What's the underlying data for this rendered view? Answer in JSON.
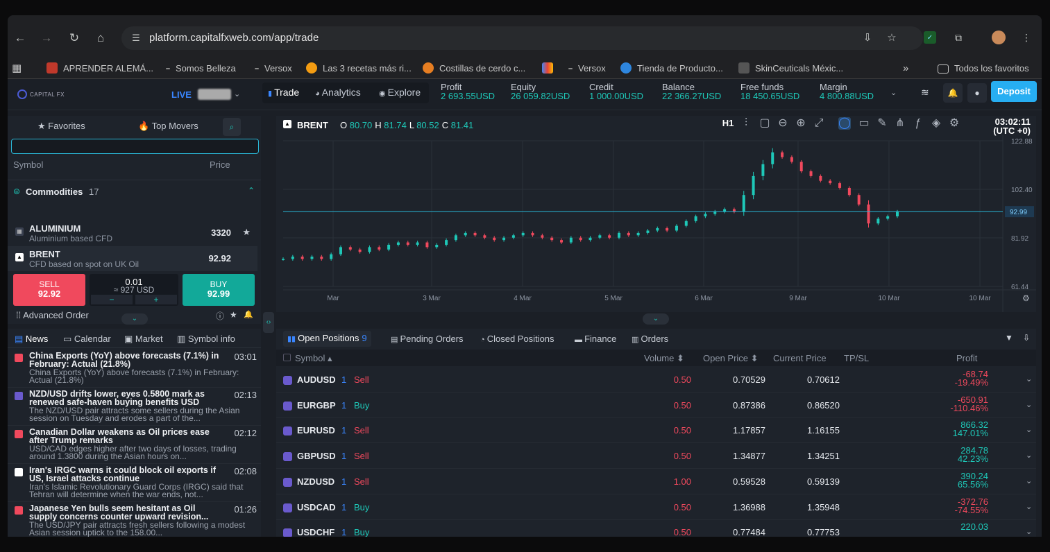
{
  "browser": {
    "url": "platform.capitalfxweb.com/app/trade",
    "bookmarks": [
      {
        "label": "APRENDER ALEMÁ...",
        "color": "#c0392b"
      },
      {
        "label": "Somos Belleza",
        "color": ""
      },
      {
        "label": "Versox",
        "color": ""
      },
      {
        "label": "Las 3 recetas más ri...",
        "color": "#f39c12"
      },
      {
        "label": "Costillas de cerdo c...",
        "color": "#e67e22"
      },
      {
        "label": "",
        "color": "#ea4335"
      },
      {
        "label": "Versox",
        "color": ""
      },
      {
        "label": "Tienda de Producto...",
        "color": "#2e86de"
      },
      {
        "label": "SkinCeuticals Méxic...",
        "color": "#555"
      }
    ],
    "all_bookmarks": "Todos los favoritos"
  },
  "header": {
    "logo": "CAPITAL FX",
    "mode": "LIVE",
    "nav": [
      "Trade",
      "Analytics",
      "Explore"
    ],
    "stats": [
      {
        "label": "Profit",
        "value": "2 693.55USD"
      },
      {
        "label": "Equity",
        "value": "26 059.82USD"
      },
      {
        "label": "Credit",
        "value": "1 000.00USD"
      },
      {
        "label": "Balance",
        "value": "22 366.27USD"
      },
      {
        "label": "Free funds",
        "value": "18 450.65USD"
      },
      {
        "label": "Margin",
        "value": "4 800.88USD"
      }
    ],
    "deposit": "Deposit"
  },
  "watchlist": {
    "tabs": [
      "Favorites",
      "Top Movers"
    ],
    "col_symbol": "Symbol",
    "col_price": "Price",
    "group": "Commodities",
    "group_count": "17",
    "rows": [
      {
        "symbol": "ALUMINIUM",
        "desc": "Aluminium based CFD",
        "price": "3320"
      },
      {
        "symbol": "BRENT",
        "desc": "CFD based on spot on UK Oil",
        "price": "92.92"
      }
    ],
    "sell_label": "SELL",
    "sell_price": "92.92",
    "buy_label": "BUY",
    "buy_price": "92.99",
    "volume": "0.01",
    "volume_usd": "≈ 927 USD",
    "minus": "−",
    "plus": "+",
    "advanced": "Advanced Order"
  },
  "news": {
    "tabs": [
      "News",
      "Calendar",
      "Market",
      "Symbol info"
    ],
    "items": [
      {
        "title": "China Exports (YoY) above forecasts (7.1%) in February: Actual (21.8%)",
        "desc": "China Exports (YoY) above forecasts (7.1%) in February: Actual (21.8%)",
        "time": "03:01",
        "color": "#f0495d"
      },
      {
        "title": "NZD/USD drifts lower, eyes 0.5800 mark as renewed safe-haven buying benefits USD",
        "desc": "The NZD/USD pair attracts some sellers during the Asian session on Tuesday and erodes a part of the...",
        "time": "02:13",
        "color": "#6a5acd"
      },
      {
        "title": "Canadian Dollar weakens as Oil prices ease after Trump remarks",
        "desc": "USD/CAD edges higher after two days of losses, trading around 1.3800 during the Asian hours on...",
        "time": "02:12",
        "color": "#f0495d"
      },
      {
        "title": "Iran's IRGC warns it could block oil exports if US, Israel attacks continue",
        "desc": "Iran's Islamic Revolutionary Guard Corps (IRGC) said that Tehran will determine when the war ends, not...",
        "time": "02:08",
        "color": "#ffffff"
      },
      {
        "title": "Japanese Yen bulls seem hesitant as Oil supply concerns counter upward revision...",
        "desc": "The USD/JPY pair attracts fresh sellers following a modest Asian session uptick to the 158.00...",
        "time": "01:26",
        "color": "#f0495d"
      }
    ]
  },
  "chart": {
    "symbol": "BRENT",
    "o": "80.70",
    "h": "81.74",
    "l": "80.52",
    "c": "81.41",
    "timeframe": "H1",
    "time": "03:02:11",
    "tz": "(UTC +0)"
  },
  "chart_data": {
    "type": "candlestick",
    "title": "BRENT",
    "x_ticks": [
      "Mar",
      "3 Mar",
      "4 Mar",
      "5 Mar",
      "6 Mar",
      "9 Mar",
      "10 Mar",
      "10 Mar"
    ],
    "y_ticks": [
      122.88,
      102.4,
      81.92,
      61.44
    ],
    "ylim": [
      61.44,
      122.88
    ],
    "current_price": 92.99,
    "series": [
      {
        "values": [
          73,
          74,
          73,
          74,
          73,
          75,
          78,
          77,
          76,
          78,
          77,
          79,
          80,
          79,
          80,
          78,
          79,
          81,
          83,
          84,
          83,
          82,
          81,
          82,
          83,
          84,
          83,
          82,
          81,
          80,
          82,
          81,
          82,
          83,
          82,
          84,
          83,
          84,
          85,
          86,
          85,
          87,
          89,
          91,
          92,
          93,
          94,
          93,
          100,
          108,
          113,
          118,
          116,
          114,
          110,
          108,
          106,
          105,
          103,
          100,
          96,
          88,
          90,
          91,
          93
        ]
      }
    ]
  },
  "positions": {
    "tabs": [
      {
        "label": "Open Positions",
        "count": "9"
      },
      {
        "label": "Pending Orders",
        "count": ""
      },
      {
        "label": "Closed Positions",
        "count": ""
      },
      {
        "label": "Finance",
        "count": ""
      },
      {
        "label": "Orders",
        "count": ""
      }
    ],
    "cols": [
      "Symbol",
      "Volume",
      "Open Price",
      "Current Price",
      "TP/SL",
      "Profit"
    ],
    "rows": [
      {
        "symbol": "AUDUSD",
        "qty": "1",
        "side": "Sell",
        "volume": "0.50",
        "open": "0.70529",
        "current": "0.70612",
        "profit": "-68.74",
        "pct": "-19.49%"
      },
      {
        "symbol": "EURGBP",
        "qty": "1",
        "side": "Buy",
        "volume": "0.50",
        "open": "0.87386",
        "current": "0.86520",
        "profit": "-650.91",
        "pct": "-110.46%"
      },
      {
        "symbol": "EURUSD",
        "qty": "1",
        "side": "Sell",
        "volume": "0.50",
        "open": "1.17857",
        "current": "1.16155",
        "profit": "866.32",
        "pct": "147.01%"
      },
      {
        "symbol": "GBPUSD",
        "qty": "1",
        "side": "Sell",
        "volume": "0.50",
        "open": "1.34877",
        "current": "1.34251",
        "profit": "284.78",
        "pct": "42.23%"
      },
      {
        "symbol": "NZDUSD",
        "qty": "1",
        "side": "Sell",
        "volume": "1.00",
        "open": "0.59528",
        "current": "0.59139",
        "profit": "390.24",
        "pct": "65.56%"
      },
      {
        "symbol": "USDCAD",
        "qty": "1",
        "side": "Buy",
        "volume": "0.50",
        "open": "1.36988",
        "current": "1.35948",
        "profit": "-372.76",
        "pct": "-74.55%"
      },
      {
        "symbol": "USDCHF",
        "qty": "1",
        "side": "Buy",
        "volume": "0.50",
        "open": "0.77484",
        "current": "0.77753",
        "profit": "220.03",
        "pct": ""
      }
    ]
  }
}
